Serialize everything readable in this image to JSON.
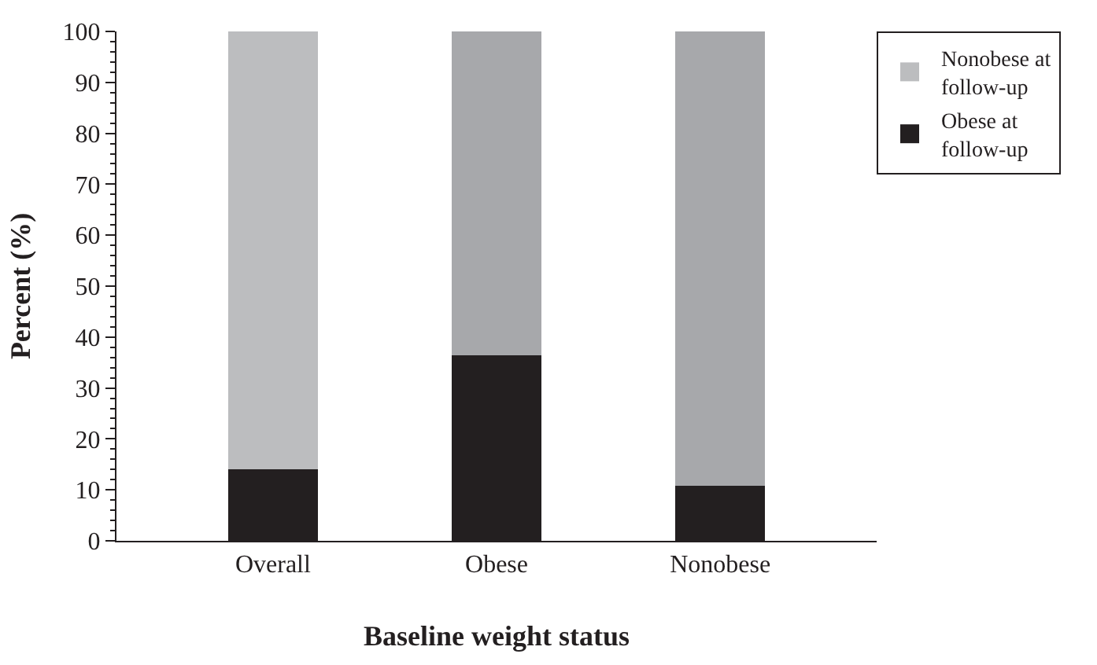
{
  "chart_data": {
    "type": "bar",
    "stacked": true,
    "xlabel": "Baseline weight status",
    "ylabel": "Percent (%)",
    "categories": [
      "Overall",
      "Obese",
      "Nonobese"
    ],
    "series": [
      {
        "name": "Obese at follow-up",
        "color": "#231f20",
        "values": [
          14.1,
          36.4,
          10.8
        ]
      },
      {
        "name": "Nonobese at follow-up",
        "color": "#bcbdbf",
        "colors": [
          "#bcbdbf",
          "#a7a8ab",
          "#a7a8ab"
        ],
        "values": [
          85.9,
          63.6,
          89.2
        ]
      }
    ],
    "ylim": [
      0,
      100
    ],
    "yticks": [
      0,
      10,
      20,
      30,
      40,
      50,
      60,
      70,
      80,
      90,
      100
    ],
    "legend": "top right"
  }
}
